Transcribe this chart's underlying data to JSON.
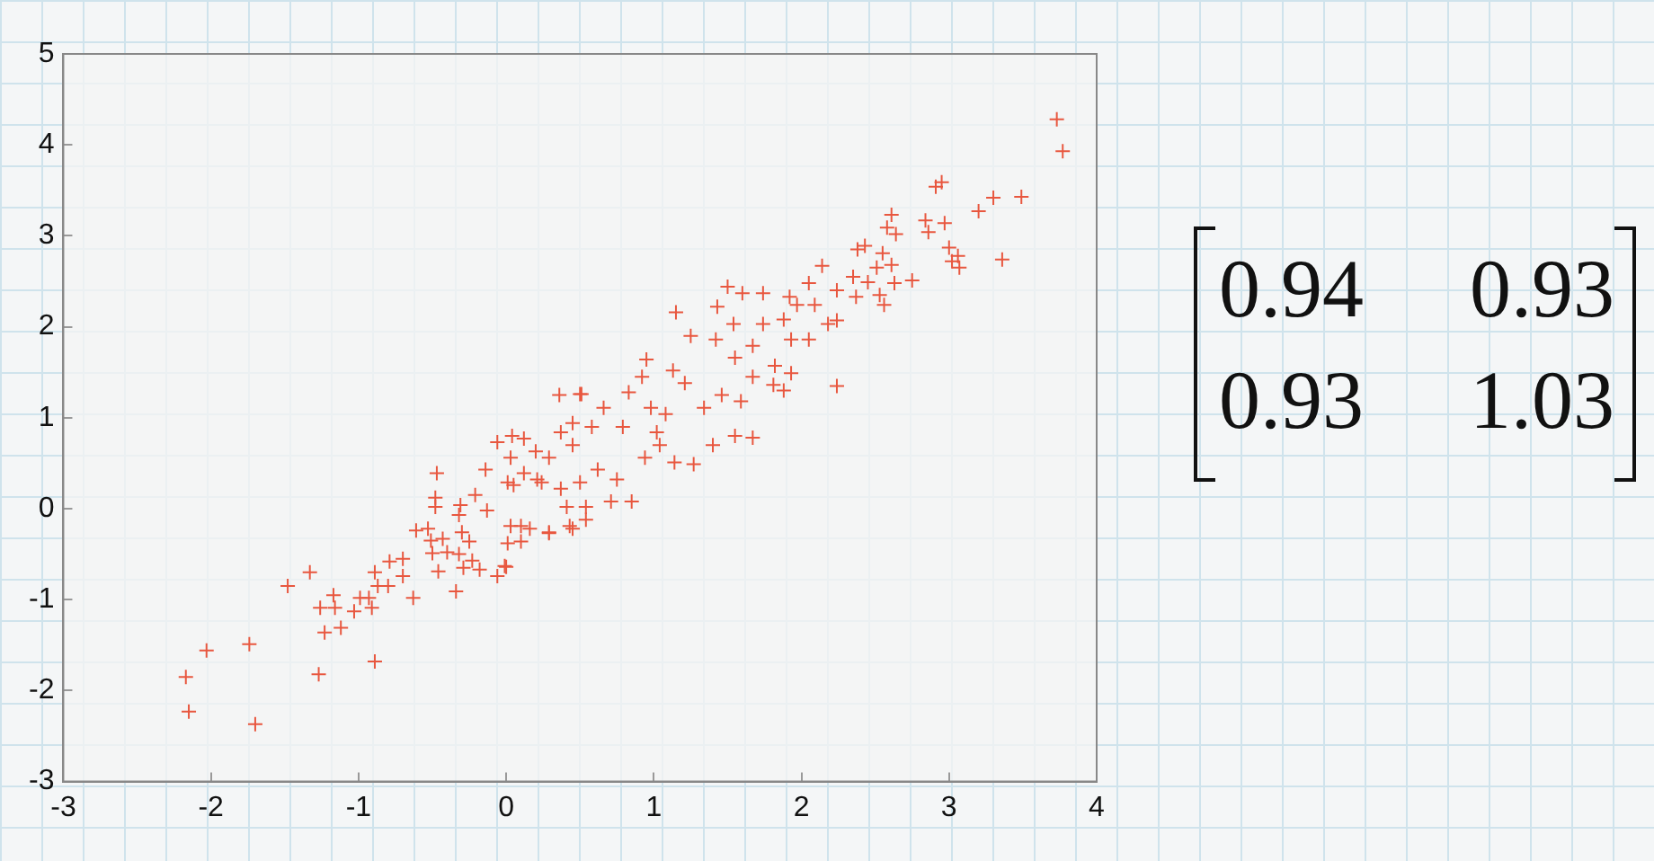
{
  "chart_data": {
    "type": "scatter",
    "marker": "cross",
    "grid": false,
    "legend": false,
    "xlim": [
      -3,
      4
    ],
    "xticks": [
      -3,
      -2,
      -1,
      0,
      1,
      2,
      3,
      4
    ],
    "ylim": [
      -3,
      5
    ],
    "yticks": [
      -3,
      -2,
      -1,
      0,
      1,
      2,
      3,
      4,
      5
    ],
    "annotations": [
      "0.94",
      "0.93",
      "0.93",
      "1.03"
    ],
    "series": [
      {
        "color": "#e8573f",
        "x": [
          -2.17,
          -2.15,
          -2.03,
          -1.74,
          -1.7,
          -1.48,
          -1.33,
          -1.27,
          -1.26,
          -1.23,
          -1.17,
          -1.16,
          -1.12,
          -1.03,
          -0.99,
          -0.93,
          -0.91,
          -0.89,
          -0.89,
          -0.87,
          -0.8,
          -0.79,
          -0.7,
          -0.7,
          -0.63,
          -0.61,
          -0.53,
          -0.51,
          -0.5,
          -0.48,
          -0.48,
          -0.47,
          -0.46,
          -0.43,
          -0.4,
          -0.34,
          -0.32,
          -0.32,
          -0.31,
          -0.3,
          -0.29,
          -0.25,
          -0.23,
          -0.21,
          -0.18,
          -0.14,
          -0.13,
          -0.06,
          -0.06,
          0.0,
          0.01,
          0.04,
          0.05,
          0.1,
          0.16,
          0.29,
          0.21,
          0.36,
          0.51,
          0.43,
          0.54,
          0.45,
          3.73,
          3.77,
          2.91,
          2.95,
          3.2,
          3.3,
          3.49,
          3.36,
          2.61,
          2.58,
          2.64,
          2.84,
          2.97,
          2.86,
          3.0,
          3.06,
          3.07,
          3.02,
          2.38,
          2.43,
          2.55,
          2.61,
          2.51,
          2.63,
          2.75,
          2.56,
          2.53,
          2.45,
          2.35,
          2.24,
          2.14,
          2.05,
          2.37,
          2.24,
          2.18,
          2.09,
          1.97,
          1.92,
          1.74,
          1.6,
          1.5,
          1.43,
          1.15,
          1.88,
          2.24,
          2.05,
          1.93,
          1.82,
          1.81,
          1.88,
          1.93,
          1.74,
          1.67,
          1.54,
          1.67,
          1.55,
          1.42,
          1.25,
          1.13,
          0.95,
          0.92,
          0.83,
          0.5,
          1.21,
          1.34,
          1.46,
          1.59,
          1.67,
          1.55,
          1.4,
          1.27,
          1.14,
          1.02,
          1.08,
          0.98,
          0.79,
          0.66,
          0.58,
          0.45,
          0.37,
          0.29,
          0.2,
          0.12,
          0.03,
          0.01,
          0.12,
          0.24,
          0.37,
          0.5,
          0.62,
          0.75,
          0.85,
          0.94,
          1.04,
          0.41,
          0.45,
          0.29,
          0.1,
          -0.01,
          0.03,
          0.54,
          0.71
        ],
        "values": [
          -1.85,
          -2.23,
          -1.56,
          -1.49,
          -2.37,
          -0.85,
          -0.7,
          -1.82,
          -1.09,
          -1.36,
          -0.95,
          -1.09,
          -1.31,
          -1.13,
          -0.98,
          -0.98,
          -1.09,
          -0.7,
          -1.68,
          -0.85,
          -0.85,
          -0.58,
          -0.55,
          -0.74,
          -0.98,
          -0.24,
          -0.22,
          -0.35,
          -0.49,
          0.12,
          0.02,
          0.39,
          -0.69,
          -0.33,
          -0.48,
          -0.91,
          -0.5,
          -0.07,
          0.04,
          -0.26,
          -0.65,
          -0.36,
          -0.57,
          0.15,
          -0.67,
          0.43,
          -0.02,
          -0.74,
          0.73,
          -0.64,
          -0.38,
          0.8,
          0.26,
          -0.19,
          -0.22,
          -0.27,
          0.32,
          1.25,
          1.26,
          -0.19,
          -0.12,
          0.94,
          4.28,
          3.93,
          3.54,
          3.59,
          3.27,
          3.42,
          3.43,
          2.74,
          3.23,
          3.09,
          3.02,
          3.17,
          3.14,
          3.04,
          2.87,
          2.78,
          2.65,
          2.72,
          2.85,
          2.89,
          2.81,
          2.68,
          2.65,
          2.48,
          2.51,
          2.24,
          2.35,
          2.49,
          2.55,
          2.4,
          2.67,
          2.48,
          2.33,
          2.07,
          2.03,
          2.24,
          2.24,
          2.33,
          2.37,
          2.37,
          2.44,
          2.22,
          2.16,
          2.08,
          1.35,
          1.86,
          1.86,
          1.57,
          1.36,
          1.3,
          1.49,
          2.03,
          1.79,
          2.03,
          1.45,
          1.66,
          1.86,
          1.9,
          1.52,
          1.64,
          1.45,
          1.28,
          1.26,
          1.38,
          1.11,
          1.25,
          1.18,
          0.78,
          0.8,
          0.7,
          0.49,
          0.51,
          0.84,
          1.04,
          1.11,
          0.9,
          1.11,
          0.9,
          0.7,
          0.84,
          0.56,
          0.63,
          0.77,
          0.56,
          0.29,
          0.39,
          0.29,
          0.22,
          0.29,
          0.43,
          0.32,
          0.08,
          0.56,
          0.7,
          0.02,
          -0.22,
          -0.26,
          -0.36,
          -0.63,
          -0.19,
          0.02,
          0.08
        ]
      }
    ]
  }
}
